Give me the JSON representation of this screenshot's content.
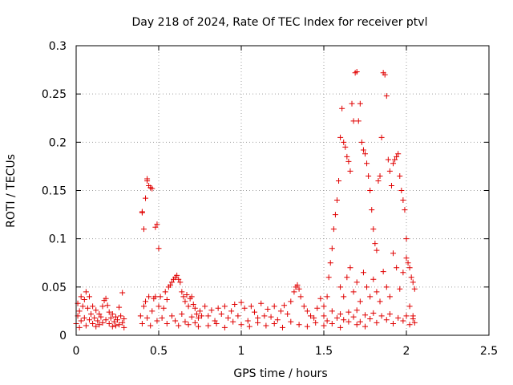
{
  "chart_data": {
    "type": "scatter",
    "title": "Day 218 of 2024, Rate Of TEC Index for receiver ptvl",
    "xlabel": "GPS time / hours",
    "ylabel": "ROTI / TECUs",
    "xlim": [
      0,
      2.5
    ],
    "ylim": [
      0,
      0.3
    ],
    "xticks": [
      0,
      0.5,
      1,
      1.5,
      2,
      2.5
    ],
    "xtick_labels": [
      "0",
      "0.5",
      "1",
      "1.5",
      "2",
      "2.5"
    ],
    "yticks": [
      0,
      0.05,
      0.1,
      0.15,
      0.2,
      0.25,
      0.3
    ],
    "ytick_labels": [
      "0",
      "0.05",
      "0.1",
      "0.15",
      "0.2",
      "0.25",
      "0.3"
    ],
    "grid": true,
    "marker": "+",
    "marker_color": "#e00000",
    "series": [
      {
        "name": "ROTI",
        "points": [
          [
            0.0,
            0.012
          ],
          [
            0.01,
            0.02
          ],
          [
            0.01,
            0.033
          ],
          [
            0.02,
            0.008
          ],
          [
            0.02,
            0.025
          ],
          [
            0.03,
            0.04
          ],
          [
            0.03,
            0.015
          ],
          [
            0.04,
            0.03
          ],
          [
            0.05,
            0.037
          ],
          [
            0.05,
            0.018
          ],
          [
            0.06,
            0.045
          ],
          [
            0.06,
            0.01
          ],
          [
            0.07,
            0.028
          ],
          [
            0.08,
            0.04
          ],
          [
            0.08,
            0.016
          ],
          [
            0.09,
            0.022
          ],
          [
            0.1,
            0.03
          ],
          [
            0.1,
            0.012
          ],
          [
            0.11,
            0.018
          ],
          [
            0.12,
            0.026
          ],
          [
            0.12,
            0.009
          ],
          [
            0.13,
            0.015
          ],
          [
            0.14,
            0.022
          ],
          [
            0.14,
            0.011
          ],
          [
            0.15,
            0.019
          ],
          [
            0.16,
            0.03
          ],
          [
            0.16,
            0.013
          ],
          [
            0.17,
            0.036
          ],
          [
            0.18,
            0.038
          ],
          [
            0.18,
            0.016
          ],
          [
            0.19,
            0.031
          ],
          [
            0.2,
            0.012
          ],
          [
            0.2,
            0.024
          ],
          [
            0.21,
            0.018
          ],
          [
            0.22,
            0.009
          ],
          [
            0.22,
            0.022
          ],
          [
            0.23,
            0.014
          ],
          [
            0.24,
            0.019
          ],
          [
            0.24,
            0.01
          ],
          [
            0.25,
            0.016
          ],
          [
            0.26,
            0.029
          ],
          [
            0.26,
            0.011
          ],
          [
            0.27,
            0.02
          ],
          [
            0.28,
            0.013
          ],
          [
            0.28,
            0.044
          ],
          [
            0.29,
            0.017
          ],
          [
            0.29,
            0.008
          ],
          [
            0.4,
            0.128
          ],
          [
            0.4,
            0.127
          ],
          [
            0.41,
            0.11
          ],
          [
            0.42,
            0.142
          ],
          [
            0.43,
            0.16
          ],
          [
            0.43,
            0.162
          ],
          [
            0.44,
            0.155
          ],
          [
            0.45,
            0.153
          ],
          [
            0.46,
            0.152
          ],
          [
            0.48,
            0.112
          ],
          [
            0.49,
            0.115
          ],
          [
            0.5,
            0.09
          ],
          [
            0.39,
            0.02
          ],
          [
            0.4,
            0.012
          ],
          [
            0.41,
            0.03
          ],
          [
            0.42,
            0.035
          ],
          [
            0.43,
            0.018
          ],
          [
            0.44,
            0.04
          ],
          [
            0.45,
            0.01
          ],
          [
            0.46,
            0.025
          ],
          [
            0.47,
            0.038
          ],
          [
            0.48,
            0.04
          ],
          [
            0.49,
            0.015
          ],
          [
            0.5,
            0.03
          ],
          [
            0.51,
            0.04
          ],
          [
            0.52,
            0.018
          ],
          [
            0.53,
            0.028
          ],
          [
            0.54,
            0.045
          ],
          [
            0.55,
            0.037
          ],
          [
            0.56,
            0.05
          ],
          [
            0.57,
            0.052
          ],
          [
            0.58,
            0.055
          ],
          [
            0.59,
            0.058
          ],
          [
            0.6,
            0.06
          ],
          [
            0.61,
            0.062
          ],
          [
            0.62,
            0.058
          ],
          [
            0.63,
            0.055
          ],
          [
            0.64,
            0.045
          ],
          [
            0.65,
            0.04
          ],
          [
            0.66,
            0.035
          ],
          [
            0.67,
            0.042
          ],
          [
            0.68,
            0.03
          ],
          [
            0.69,
            0.038
          ],
          [
            0.7,
            0.04
          ],
          [
            0.71,
            0.032
          ],
          [
            0.72,
            0.028
          ],
          [
            0.73,
            0.022
          ],
          [
            0.74,
            0.018
          ],
          [
            0.75,
            0.025
          ],
          [
            0.76,
            0.02
          ],
          [
            0.55,
            0.012
          ],
          [
            0.58,
            0.02
          ],
          [
            0.6,
            0.015
          ],
          [
            0.62,
            0.01
          ],
          [
            0.64,
            0.022
          ],
          [
            0.66,
            0.014
          ],
          [
            0.68,
            0.011
          ],
          [
            0.7,
            0.019
          ],
          [
            0.72,
            0.013
          ],
          [
            0.74,
            0.009
          ],
          [
            0.78,
            0.03
          ],
          [
            0.8,
            0.02
          ],
          [
            0.82,
            0.026
          ],
          [
            0.84,
            0.015
          ],
          [
            0.86,
            0.028
          ],
          [
            0.88,
            0.022
          ],
          [
            0.9,
            0.03
          ],
          [
            0.92,
            0.018
          ],
          [
            0.94,
            0.025
          ],
          [
            0.96,
            0.032
          ],
          [
            0.98,
            0.02
          ],
          [
            1.0,
            0.034
          ],
          [
            1.02,
            0.028
          ],
          [
            1.04,
            0.015
          ],
          [
            1.06,
            0.03
          ],
          [
            1.08,
            0.024
          ],
          [
            1.1,
            0.018
          ],
          [
            1.12,
            0.033
          ],
          [
            1.14,
            0.02
          ],
          [
            1.16,
            0.027
          ],
          [
            1.18,
            0.019
          ],
          [
            1.2,
            0.03
          ],
          [
            1.22,
            0.016
          ],
          [
            1.24,
            0.025
          ],
          [
            1.26,
            0.031
          ],
          [
            1.28,
            0.022
          ],
          [
            1.3,
            0.035
          ],
          [
            1.32,
            0.045
          ],
          [
            1.33,
            0.05
          ],
          [
            1.34,
            0.052
          ],
          [
            1.35,
            0.048
          ],
          [
            1.36,
            0.04
          ],
          [
            1.38,
            0.03
          ],
          [
            1.4,
            0.025
          ],
          [
            1.42,
            0.02
          ],
          [
            1.44,
            0.018
          ],
          [
            1.46,
            0.028
          ],
          [
            1.48,
            0.038
          ],
          [
            1.5,
            0.03
          ],
          [
            1.52,
            0.04
          ],
          [
            0.8,
            0.01
          ],
          [
            0.85,
            0.012
          ],
          [
            0.9,
            0.008
          ],
          [
            0.95,
            0.014
          ],
          [
            1.0,
            0.011
          ],
          [
            1.05,
            0.009
          ],
          [
            1.1,
            0.013
          ],
          [
            1.15,
            0.01
          ],
          [
            1.2,
            0.012
          ],
          [
            1.25,
            0.008
          ],
          [
            1.3,
            0.014
          ],
          [
            1.35,
            0.011
          ],
          [
            1.4,
            0.009
          ],
          [
            1.45,
            0.013
          ],
          [
            1.5,
            0.01
          ],
          [
            1.55,
            0.012
          ],
          [
            1.6,
            0.008
          ],
          [
            1.65,
            0.014
          ],
          [
            1.7,
            0.011
          ],
          [
            1.75,
            0.009
          ],
          [
            1.53,
            0.06
          ],
          [
            1.54,
            0.075
          ],
          [
            1.55,
            0.09
          ],
          [
            1.56,
            0.11
          ],
          [
            1.57,
            0.125
          ],
          [
            1.58,
            0.14
          ],
          [
            1.59,
            0.16
          ],
          [
            1.6,
            0.205
          ],
          [
            1.61,
            0.235
          ],
          [
            1.62,
            0.2
          ],
          [
            1.63,
            0.195
          ],
          [
            1.64,
            0.185
          ],
          [
            1.65,
            0.18
          ],
          [
            1.66,
            0.17
          ],
          [
            1.67,
            0.24
          ],
          [
            1.68,
            0.222
          ],
          [
            1.69,
            0.272
          ],
          [
            1.7,
            0.273
          ],
          [
            1.71,
            0.222
          ],
          [
            1.72,
            0.24
          ],
          [
            1.73,
            0.2
          ],
          [
            1.74,
            0.192
          ],
          [
            1.75,
            0.188
          ],
          [
            1.76,
            0.178
          ],
          [
            1.77,
            0.165
          ],
          [
            1.78,
            0.15
          ],
          [
            1.79,
            0.13
          ],
          [
            1.8,
            0.11
          ],
          [
            1.81,
            0.095
          ],
          [
            1.82,
            0.088
          ],
          [
            1.83,
            0.16
          ],
          [
            1.84,
            0.165
          ],
          [
            1.85,
            0.205
          ],
          [
            1.86,
            0.272
          ],
          [
            1.87,
            0.27
          ],
          [
            1.88,
            0.248
          ],
          [
            1.89,
            0.182
          ],
          [
            1.9,
            0.17
          ],
          [
            1.91,
            0.155
          ],
          [
            1.92,
            0.178
          ],
          [
            1.93,
            0.182
          ],
          [
            1.94,
            0.185
          ],
          [
            1.95,
            0.188
          ],
          [
            1.96,
            0.165
          ],
          [
            1.97,
            0.15
          ],
          [
            1.98,
            0.14
          ],
          [
            1.99,
            0.13
          ],
          [
            2.0,
            0.1
          ],
          [
            2.01,
            0.075
          ],
          [
            2.02,
            0.07
          ],
          [
            2.03,
            0.06
          ],
          [
            2.04,
            0.055
          ],
          [
            2.05,
            0.048
          ],
          [
            1.6,
            0.05
          ],
          [
            1.62,
            0.04
          ],
          [
            1.64,
            0.06
          ],
          [
            1.66,
            0.07
          ],
          [
            1.68,
            0.045
          ],
          [
            1.7,
            0.055
          ],
          [
            1.72,
            0.035
          ],
          [
            1.74,
            0.065
          ],
          [
            1.76,
            0.05
          ],
          [
            1.78,
            0.04
          ],
          [
            1.8,
            0.058
          ],
          [
            1.82,
            0.045
          ],
          [
            1.84,
            0.035
          ],
          [
            1.86,
            0.066
          ],
          [
            1.88,
            0.05
          ],
          [
            1.9,
            0.04
          ],
          [
            1.92,
            0.085
          ],
          [
            1.94,
            0.07
          ],
          [
            1.96,
            0.048
          ],
          [
            1.98,
            0.065
          ],
          [
            2.0,
            0.08
          ],
          [
            2.02,
            0.03
          ],
          [
            2.04,
            0.02
          ],
          [
            1.5,
            0.02
          ],
          [
            1.52,
            0.015
          ],
          [
            1.55,
            0.025
          ],
          [
            1.58,
            0.018
          ],
          [
            1.6,
            0.022
          ],
          [
            1.62,
            0.016
          ],
          [
            1.65,
            0.024
          ],
          [
            1.68,
            0.019
          ],
          [
            1.7,
            0.026
          ],
          [
            1.72,
            0.014
          ],
          [
            1.75,
            0.021
          ],
          [
            1.78,
            0.017
          ],
          [
            1.8,
            0.023
          ],
          [
            1.82,
            0.013
          ],
          [
            1.85,
            0.02
          ],
          [
            1.88,
            0.016
          ],
          [
            1.9,
            0.022
          ],
          [
            1.92,
            0.012
          ],
          [
            1.95,
            0.018
          ],
          [
            1.98,
            0.015
          ],
          [
            2.0,
            0.02
          ],
          [
            2.02,
            0.011
          ],
          [
            2.04,
            0.017
          ],
          [
            2.05,
            0.013
          ]
        ]
      }
    ]
  }
}
